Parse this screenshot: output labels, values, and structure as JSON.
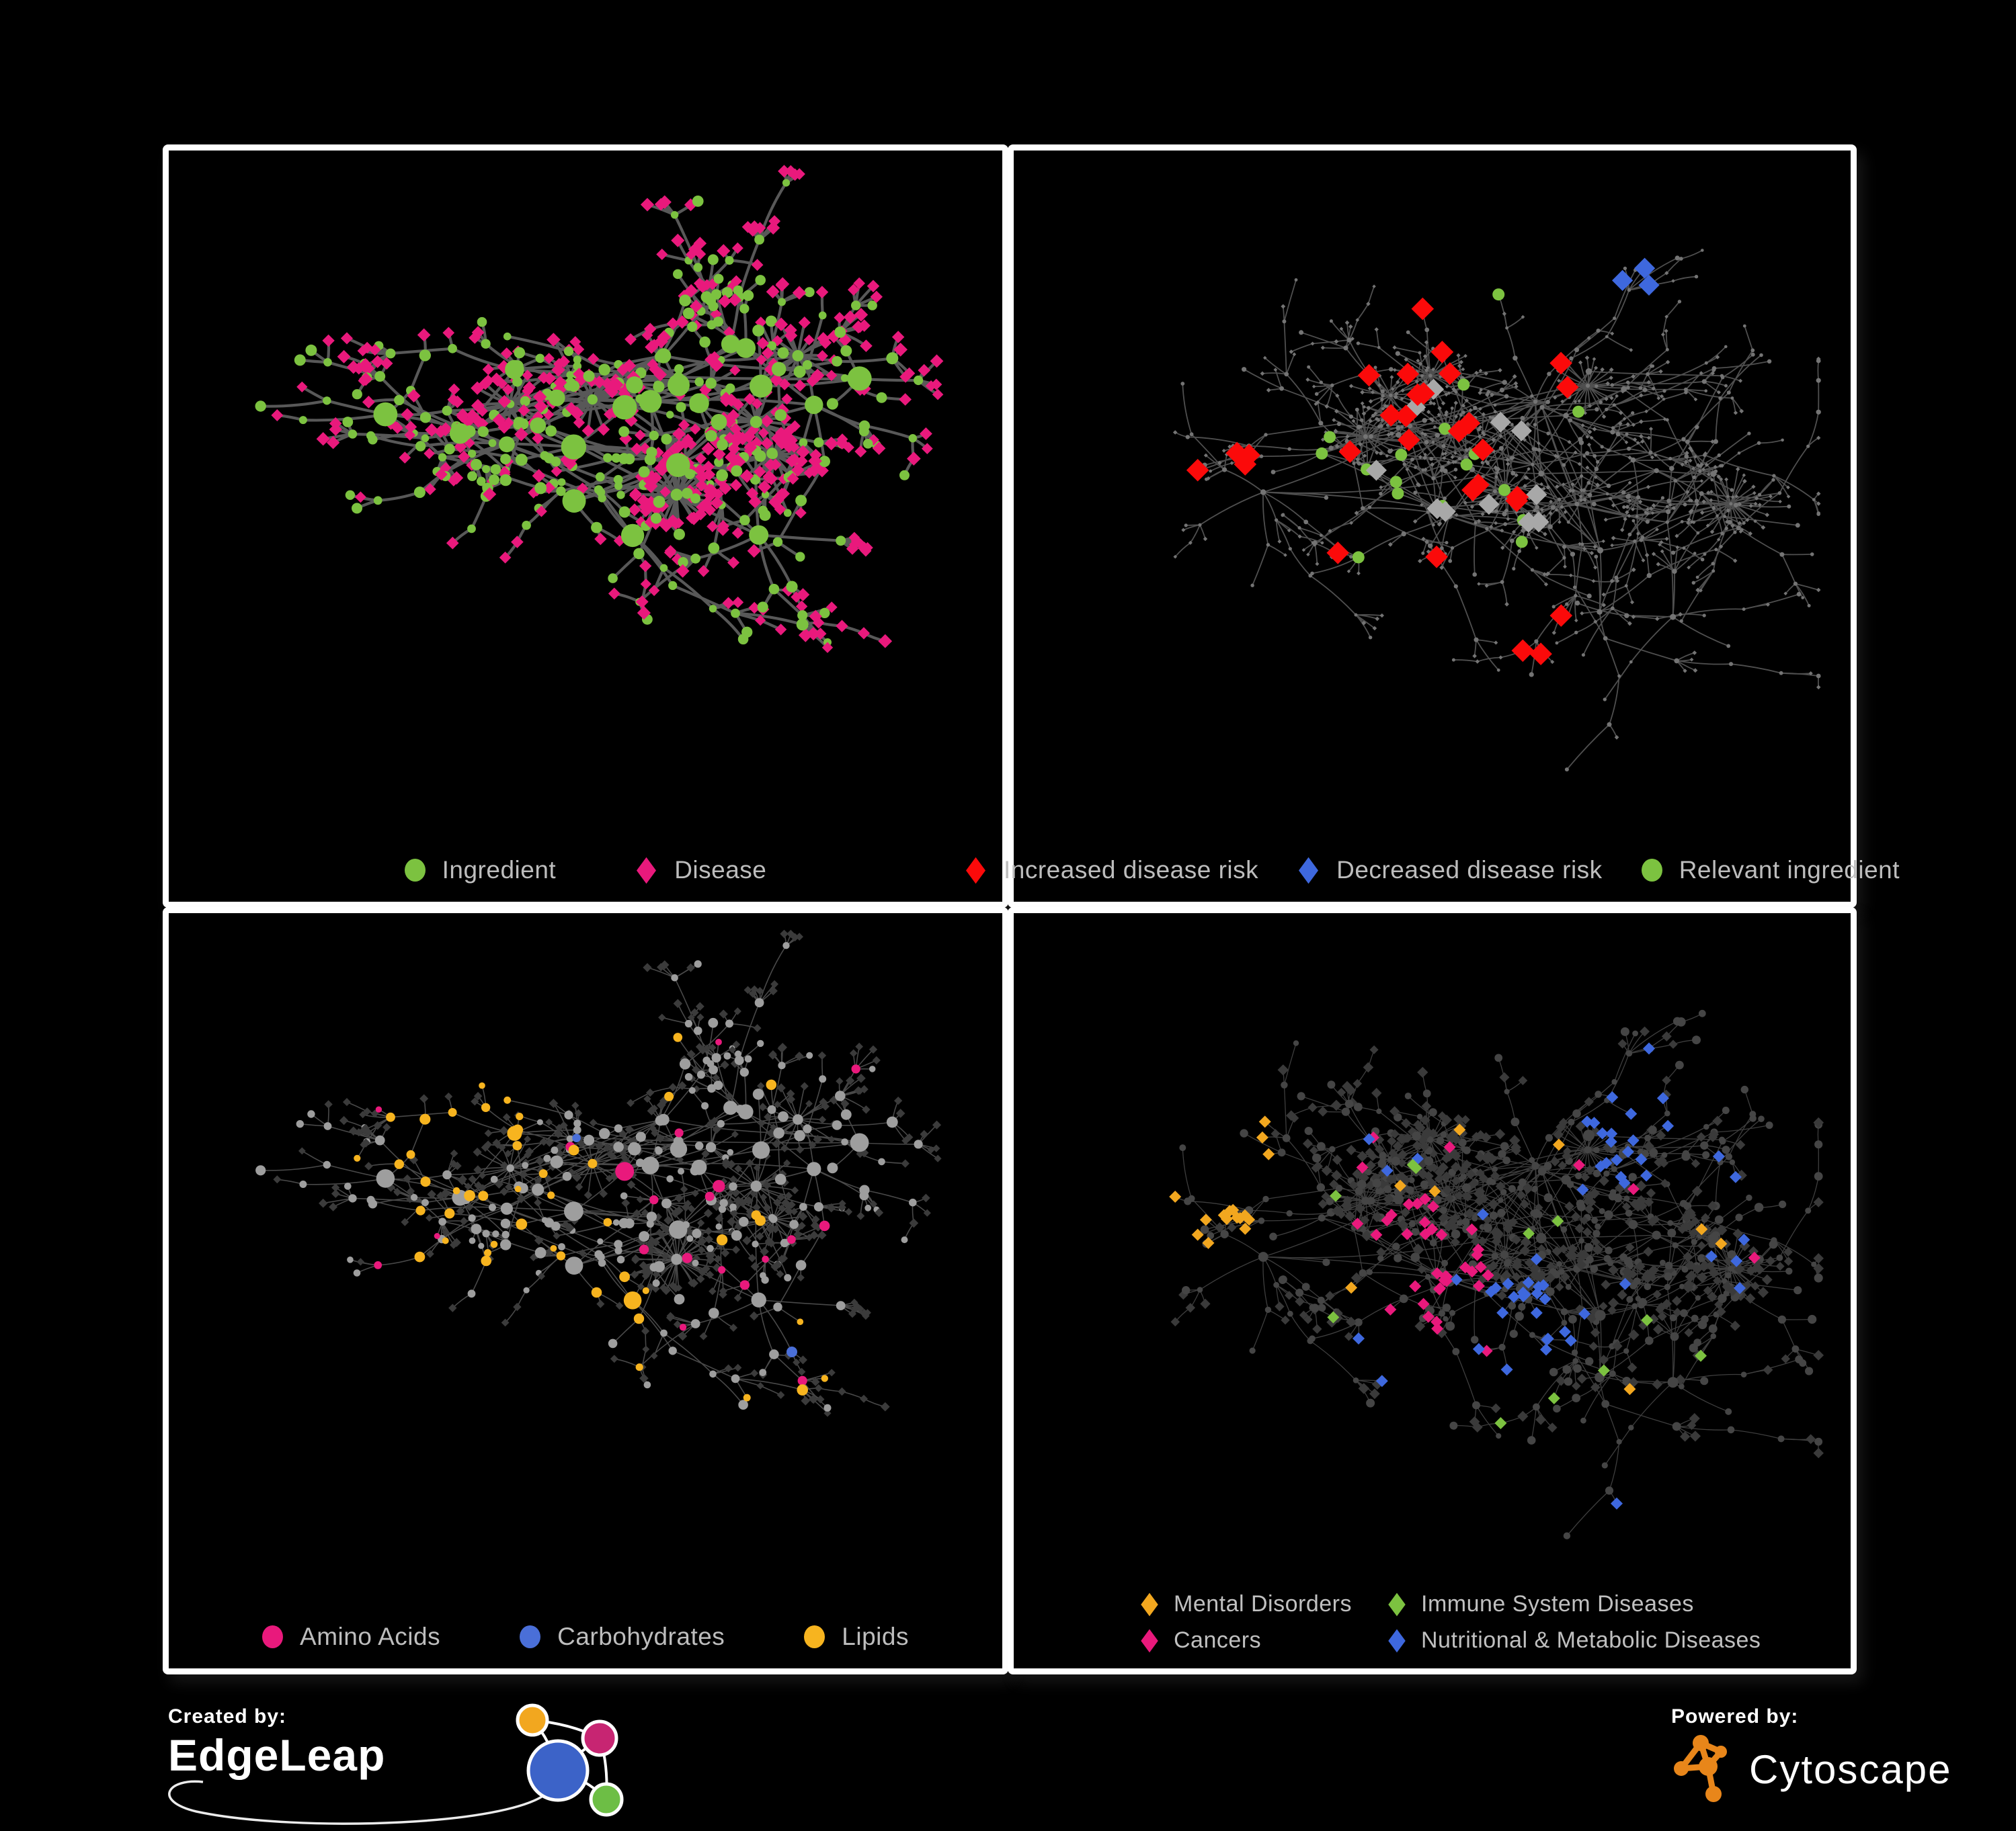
{
  "page": {
    "background": "#000000",
    "frame_color": "#ffffff",
    "panel_background": "#000000",
    "legend_text_color": "#bdbdbd"
  },
  "panels": [
    {
      "name": "ingredient-disease",
      "graph": "A",
      "legend": {
        "layout": "row",
        "items": [
          {
            "symbol": "circle",
            "color": "#7cc240",
            "label": "Ingredient"
          },
          {
            "symbol": "diamond",
            "color": "#e9197c",
            "label": "Disease"
          }
        ]
      },
      "style": {
        "edge": {
          "color": "#5d5d5d",
          "width": 4.2,
          "opacity": 0.95
        },
        "node_colors": {
          "circle": "#7cc240",
          "diamond": "#e9197c"
        },
        "sizes": {
          "hub": 13,
          "mid": 7,
          "leaf": 7.5
        },
        "rules": []
      }
    },
    {
      "name": "disease-risk",
      "graph": "B",
      "legend": {
        "layout": "row",
        "items": [
          {
            "symbol": "diamond",
            "color": "#fb0a0a",
            "label": "Increased disease risk"
          },
          {
            "symbol": "diamond",
            "color": "#3e68de",
            "label": "Decreased disease risk"
          },
          {
            "symbol": "circle",
            "color": "#7cc240",
            "label": "Relevant ingredient"
          }
        ]
      },
      "style": {
        "edge": {
          "color": "#565656",
          "width": 1.8,
          "opacity": 0.92
        },
        "node_colors": {
          "circle": "#747474",
          "diamond": "#747474"
        },
        "sizes": {
          "hub": 3.4,
          "mid": 2.9,
          "leaf": 2.5
        },
        "rules": [
          {
            "target": "diamond",
            "region": [
              0.17,
              0.33,
              0.07
            ],
            "prob": 0.5,
            "color": "#3e68de",
            "size": 13
          },
          {
            "target": "diamond",
            "region": [
              0.74,
              0.17,
              0.05
            ],
            "prob": 0.8,
            "color": "#3e68de",
            "size": 13
          },
          {
            "target": "diamond",
            "region": [
              0.4,
              0.4,
              0.3
            ],
            "prob": 0.09,
            "color": "#fb0a0a",
            "size": 14
          },
          {
            "target": "diamond",
            "region": [
              0.63,
              0.72,
              0.05
            ],
            "prob": 0.5,
            "color": "#fb0a0a",
            "size": 14
          },
          {
            "target": "diamond",
            "region": [
              0.42,
              0.42,
              0.26
            ],
            "prob": 0.035,
            "color": "#a8a8a8",
            "size": 13
          },
          {
            "target": "diamond",
            "region": [
              0.52,
              0.6,
              0.1
            ],
            "prob": 0.08,
            "color": "#a8a8a8",
            "size": 13
          },
          {
            "target": "circle",
            "region": [
              0.38,
              0.4,
              0.32
            ],
            "prob": 0.09,
            "color": "#7cc240",
            "size": 9
          }
        ]
      }
    },
    {
      "name": "nutrient-classes",
      "graph": "A",
      "legend": {
        "layout": "row",
        "items": [
          {
            "symbol": "circle",
            "color": "#e9197c",
            "label": "Amino Acids"
          },
          {
            "symbol": "circle",
            "color": "#4a6fd8",
            "label": "Carbohydrates"
          },
          {
            "symbol": "circle",
            "color": "#f7b41f",
            "label": "Lipids"
          }
        ]
      },
      "style": {
        "edge": {
          "color": "#919191",
          "width": 1.6,
          "opacity": 0.5
        },
        "node_colors": {
          "circle": "#9e9e9e",
          "diamond": "#3b3b3b"
        },
        "sizes": {
          "hub": 10,
          "mid": 6.5,
          "leaf": 5
        },
        "rules": [
          {
            "target": "circle",
            "region": [
              0.34,
              0.27,
              0.1
            ],
            "prob": 0.8,
            "color": "#f7b41f"
          },
          {
            "target": "circle",
            "region": [
              0.38,
              0.41,
              0.14
            ],
            "prob": 0.3,
            "color": "#f7b41f"
          },
          {
            "target": "circle",
            "region": [
              0.52,
              0.6,
              0.08
            ],
            "prob": 0.55,
            "color": "#f7b41f"
          },
          {
            "target": "circle",
            "region": [
              0.36,
              0.29,
              0.09
            ],
            "prob": 0.25,
            "color": "#4a6fd8"
          },
          {
            "target": "circle",
            "prob": 0.015,
            "color": "#4a6fd8"
          },
          {
            "target": "circle",
            "prob": 0.05,
            "color": "#e9197c"
          },
          {
            "target": "circle",
            "prob": 0.06,
            "color": "#f7b41f"
          }
        ]
      }
    },
    {
      "name": "disease-categories",
      "graph": "B",
      "legend": {
        "layout": "grid-2col",
        "items": [
          {
            "symbol": "diamond",
            "color": "#f2a71f",
            "label": "Mental Disorders"
          },
          {
            "symbol": "diamond",
            "color": "#7cc240",
            "label": "Immune System Diseases"
          },
          {
            "symbol": "diamond",
            "color": "#e9197c",
            "label": "Cancers"
          },
          {
            "symbol": "diamond",
            "color": "#3e68de",
            "label": "Nutritional & Metabolic Diseases"
          }
        ]
      },
      "style": {
        "edge": {
          "color": "#8a8a8a",
          "width": 1.3,
          "opacity": 0.45
        },
        "node_colors": {
          "circle": "#454545",
          "diamond": "#3a3a3a"
        },
        "sizes": {
          "hub": 6,
          "mid": 5,
          "leaf": 6
        },
        "rules": [
          {
            "target": "diamond",
            "region": [
              0.16,
              0.4,
              0.13
            ],
            "prob": 0.85,
            "color": "#f2a71f",
            "size": 7.5
          },
          {
            "target": "diamond",
            "region": [
              0.25,
              0.32,
              0.07
            ],
            "prob": 0.5,
            "color": "#f2a71f",
            "size": 7.5
          },
          {
            "target": "diamond",
            "region": [
              0.48,
              0.52,
              0.1
            ],
            "prob": 0.6,
            "color": "#e9197c",
            "size": 7.5
          },
          {
            "target": "diamond",
            "region": [
              0.41,
              0.14,
              0.05
            ],
            "prob": 0.5,
            "color": "#e9197c",
            "size": 7.5
          },
          {
            "target": "diamond",
            "region": [
              0.88,
              0.22,
              0.05
            ],
            "prob": 0.6,
            "color": "#e9197c",
            "size": 7.5
          },
          {
            "target": "diamond",
            "region": [
              0.62,
              0.62,
              0.08
            ],
            "prob": 0.65,
            "color": "#3e68de",
            "size": 7.5
          },
          {
            "target": "diamond",
            "region": [
              0.78,
              0.3,
              0.1
            ],
            "prob": 0.45,
            "color": "#3e68de",
            "size": 7.5
          },
          {
            "target": "diamond",
            "region": [
              0.68,
              0.1,
              0.08
            ],
            "prob": 0.5,
            "color": "#3e68de",
            "size": 7.5
          },
          {
            "target": "diamond",
            "region": [
              0.3,
              0.76,
              0.06
            ],
            "prob": 0.4,
            "color": "#3e68de",
            "size": 7.5
          },
          {
            "target": "diamond",
            "prob": 0.035,
            "color": "#3e68de",
            "size": 7.5
          },
          {
            "target": "diamond",
            "prob": 0.02,
            "color": "#7cc240",
            "size": 7.5
          },
          {
            "target": "diamond",
            "prob": 0.025,
            "color": "#f2a71f",
            "size": 7.5
          },
          {
            "target": "diamond",
            "prob": 0.02,
            "color": "#e9197c",
            "size": 7.5
          }
        ]
      }
    }
  ],
  "footer": {
    "created_by": {
      "label": "Created by:",
      "brand": "EdgeLeap",
      "logo_node_colors": [
        "#f2a71f",
        "#c72572",
        "#3c63c8",
        "#6dbe45"
      ]
    },
    "powered_by": {
      "label": "Powered by:",
      "brand": "Cytoscape",
      "logo_color": "#e8861a"
    }
  }
}
